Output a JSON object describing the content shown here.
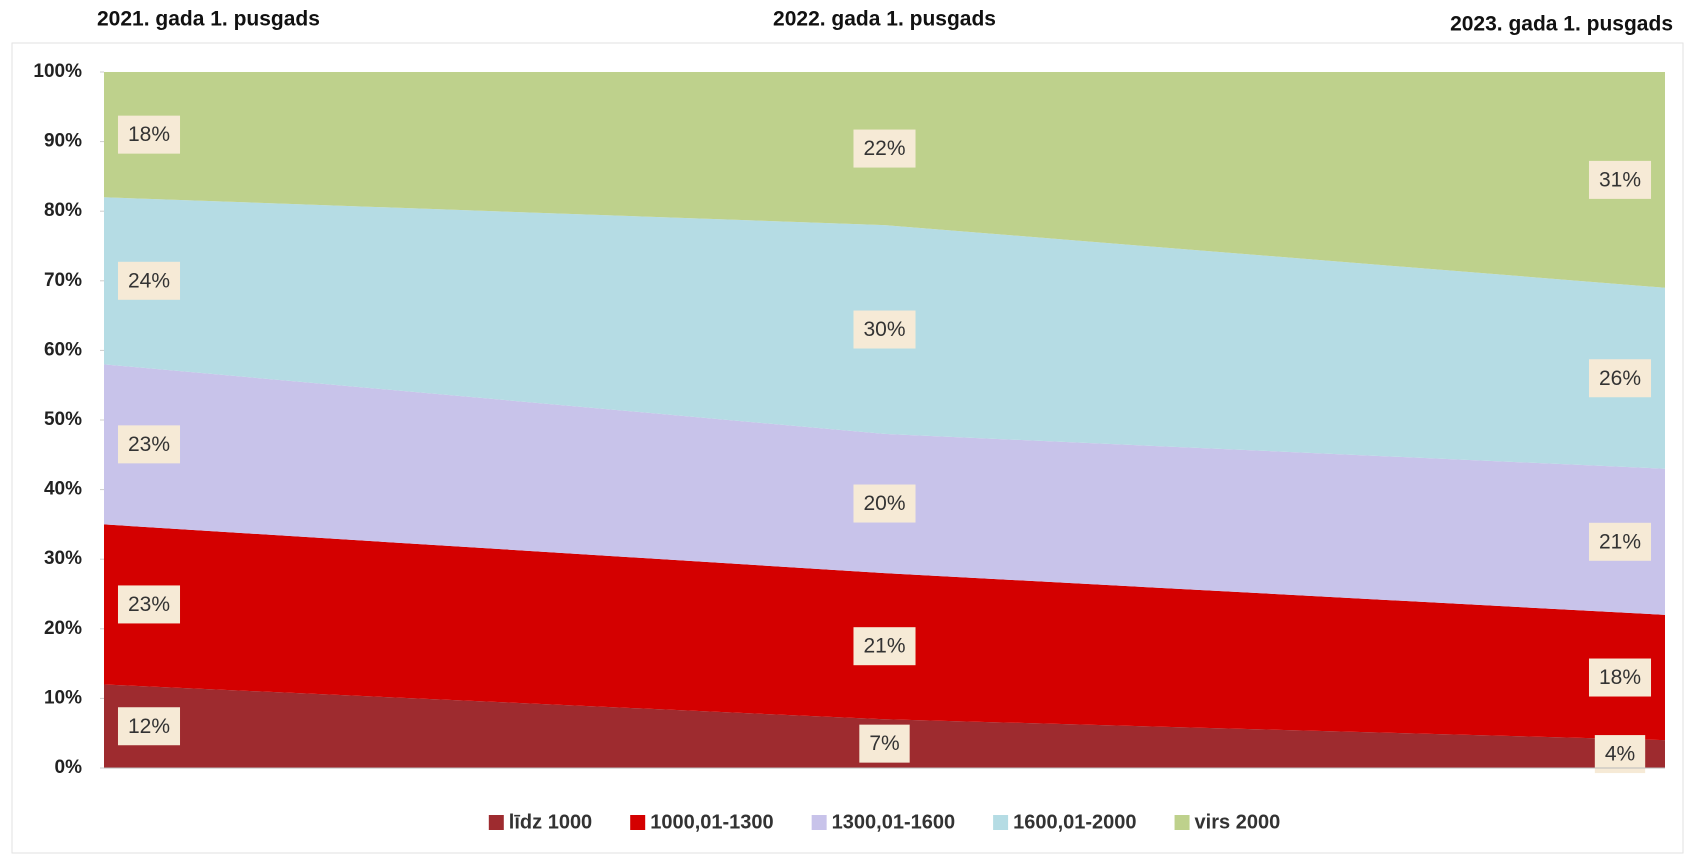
{
  "chart_data": {
    "type": "area_stacked_percent",
    "categories": [
      "2021. gada 1. pusgads",
      "2022. gada 1. pusgads",
      "2023. gada 1. pusgads"
    ],
    "series": [
      {
        "name": "līdz 1000",
        "color": "#9e2b2f",
        "values": [
          12,
          7,
          4
        ],
        "value_labels": [
          "12%",
          "7%",
          "4%"
        ]
      },
      {
        "name": "1000,01-1300",
        "color": "#d40000",
        "values": [
          23,
          21,
          18
        ],
        "value_labels": [
          "23%",
          "21%",
          "18%"
        ]
      },
      {
        "name": "1300,01-1600",
        "color": "#c8c3ea",
        "values": [
          23,
          20,
          21
        ],
        "value_labels": [
          "23%",
          "20%",
          "21%"
        ]
      },
      {
        "name": "1600,01-2000",
        "color": "#b5dce4",
        "values": [
          24,
          30,
          26
        ],
        "value_labels": [
          "24%",
          "30%",
          "26%"
        ]
      },
      {
        "name": "virs 2000",
        "color": "#bed18c",
        "values": [
          18,
          22,
          31
        ],
        "value_labels": [
          "18%",
          "22%",
          "31%"
        ]
      }
    ],
    "ylim": [
      0,
      100
    ],
    "yticks": [
      {
        "value": 0,
        "label": "0%"
      },
      {
        "value": 10,
        "label": "10%"
      },
      {
        "value": 20,
        "label": "20%"
      },
      {
        "value": 30,
        "label": "30%"
      },
      {
        "value": 40,
        "label": "40%"
      },
      {
        "value": 50,
        "label": "50%"
      },
      {
        "value": 60,
        "label": "60%"
      },
      {
        "value": 70,
        "label": "70%"
      },
      {
        "value": 80,
        "label": "80%"
      },
      {
        "value": 90,
        "label": "90%"
      },
      {
        "value": 100,
        "label": "100%"
      }
    ],
    "legend": "bottom"
  }
}
